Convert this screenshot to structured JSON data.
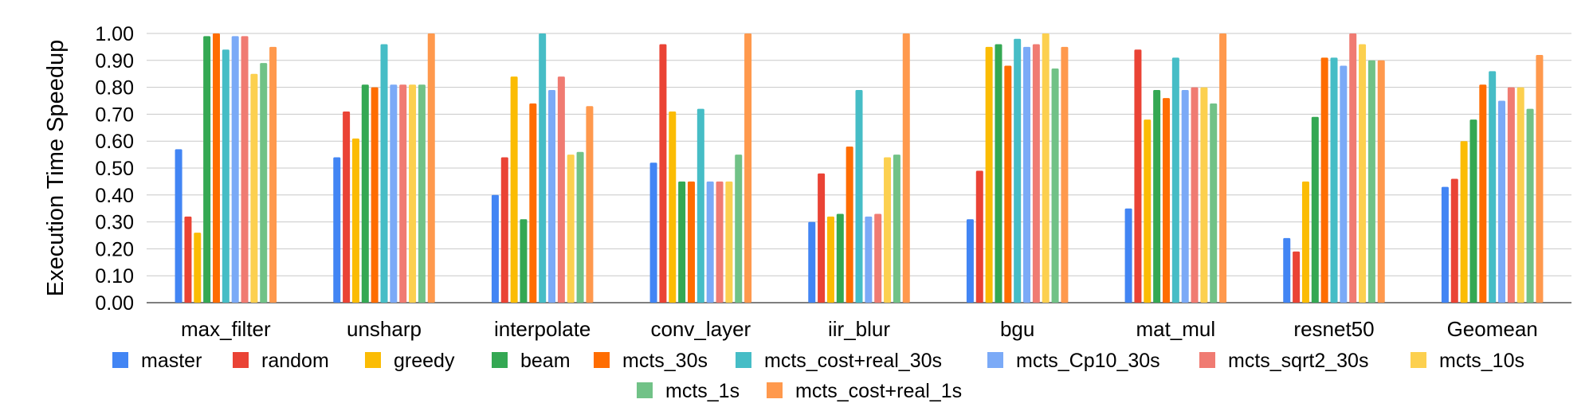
{
  "chart_data": {
    "type": "bar",
    "title": "",
    "xlabel": "",
    "ylabel": "Execution Time Speedup",
    "ylim": [
      0,
      1.0
    ],
    "yticks": [
      "0.00",
      "0.10",
      "0.20",
      "0.30",
      "0.40",
      "0.50",
      "0.60",
      "0.70",
      "0.80",
      "0.90",
      "1.00"
    ],
    "grid": true,
    "legend_position": "bottom",
    "categories": [
      "max_filter",
      "unsharp",
      "interpolate",
      "conv_layer",
      "iir_blur",
      "bgu",
      "mat_mul",
      "resnet50",
      "Geomean"
    ],
    "series": [
      {
        "name": "master",
        "color": "#4285F4",
        "values": [
          0.57,
          0.54,
          0.4,
          0.52,
          0.3,
          0.31,
          0.35,
          0.24,
          0.43
        ]
      },
      {
        "name": "random",
        "color": "#EA4335",
        "values": [
          0.32,
          0.71,
          0.54,
          0.96,
          0.48,
          0.49,
          0.94,
          0.19,
          0.46
        ]
      },
      {
        "name": "greedy",
        "color": "#FBBC04",
        "values": [
          0.26,
          0.61,
          0.84,
          0.71,
          0.32,
          0.95,
          0.68,
          0.45,
          0.6
        ]
      },
      {
        "name": "beam",
        "color": "#34A853",
        "values": [
          0.99,
          0.81,
          0.31,
          0.45,
          0.33,
          0.96,
          0.79,
          0.69,
          0.68
        ]
      },
      {
        "name": "mcts_30s",
        "color": "#FF6D01",
        "values": [
          1.0,
          0.8,
          0.74,
          0.45,
          0.58,
          0.88,
          0.76,
          0.91,
          0.81
        ]
      },
      {
        "name": "mcts_cost+real_30s",
        "color": "#46BDC6",
        "values": [
          0.94,
          0.96,
          1.0,
          0.72,
          0.79,
          0.98,
          0.91,
          0.91,
          0.86
        ]
      },
      {
        "name": "mcts_Cp10_30s",
        "color": "#7BAAF7",
        "values": [
          0.99,
          0.81,
          0.79,
          0.45,
          0.32,
          0.95,
          0.79,
          0.88,
          0.75
        ]
      },
      {
        "name": "mcts_sqrt2_30s",
        "color": "#F07B72",
        "values": [
          0.99,
          0.81,
          0.84,
          0.45,
          0.33,
          0.96,
          0.8,
          1.0,
          0.8
        ]
      },
      {
        "name": "mcts_10s",
        "color": "#FCD04F",
        "values": [
          0.85,
          0.81,
          0.55,
          0.45,
          0.54,
          1.0,
          0.8,
          0.96,
          0.8
        ]
      },
      {
        "name": "mcts_1s",
        "color": "#71C287",
        "values": [
          0.89,
          0.81,
          0.56,
          0.55,
          0.55,
          0.87,
          0.74,
          0.9,
          0.72
        ]
      },
      {
        "name": "mcts_cost+real_1s",
        "color": "#FF994D",
        "values": [
          0.95,
          1.0,
          0.73,
          1.0,
          1.0,
          0.95,
          1.0,
          0.9,
          0.92
        ]
      }
    ]
  }
}
